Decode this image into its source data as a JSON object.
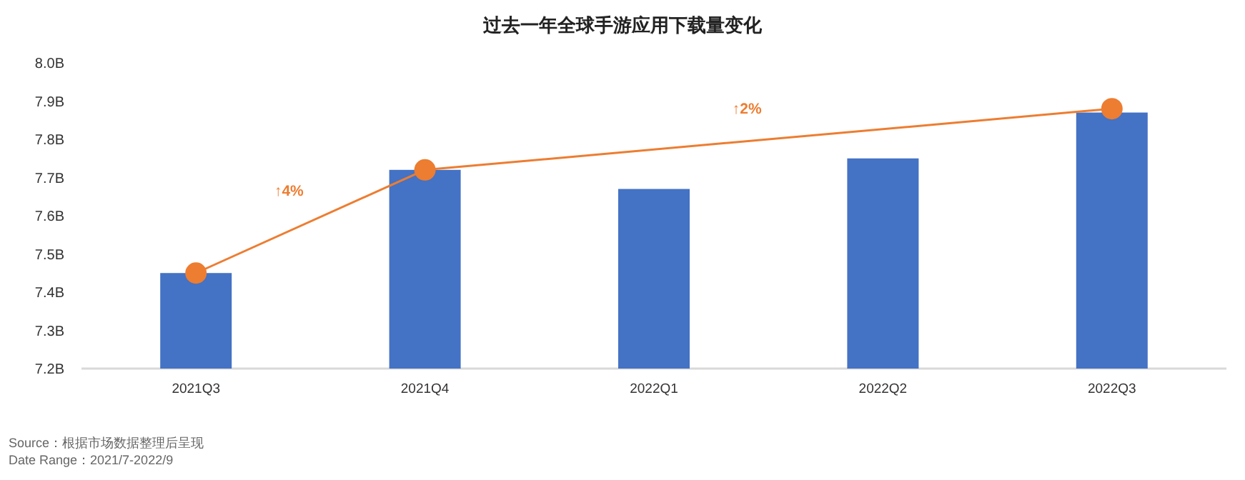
{
  "chart_data": {
    "type": "bar",
    "title": "过去一年全球手游应用下载量变化",
    "categories": [
      "2021Q3",
      "2021Q4",
      "2022Q1",
      "2022Q2",
      "2022Q3"
    ],
    "series": [
      {
        "color": "#4472c4",
        "values": [
          7.45,
          7.72,
          7.67,
          7.75,
          7.87
        ]
      },
      {
        "type": "line",
        "color": "#ed7d31",
        "x": [
          "2021Q3",
          "2021Q4",
          "2022Q3"
        ],
        "values": [
          7.45,
          7.72,
          7.88
        ],
        "marker": "circle"
      }
    ],
    "ylim": [
      7.2,
      8.0
    ],
    "yticks": [
      {
        "value": 7.2,
        "label": "7.2B"
      },
      {
        "value": 7.3,
        "label": "7.3B"
      },
      {
        "value": 7.4,
        "label": "7.4B"
      },
      {
        "value": 7.5,
        "label": "7.5B"
      },
      {
        "value": 7.6,
        "label": "7.6B"
      },
      {
        "value": 7.7,
        "label": "7.7B"
      },
      {
        "value": 7.8,
        "label": "7.8B"
      },
      {
        "value": 7.9,
        "label": "7.9B"
      },
      {
        "value": 8.0,
        "label": "8.0B"
      }
    ],
    "annotations": [
      "↑4%",
      "↑2%",
      "Source：根据市场数据整理后呈现",
      "Date Range：2021/7-2022/9"
    ]
  }
}
